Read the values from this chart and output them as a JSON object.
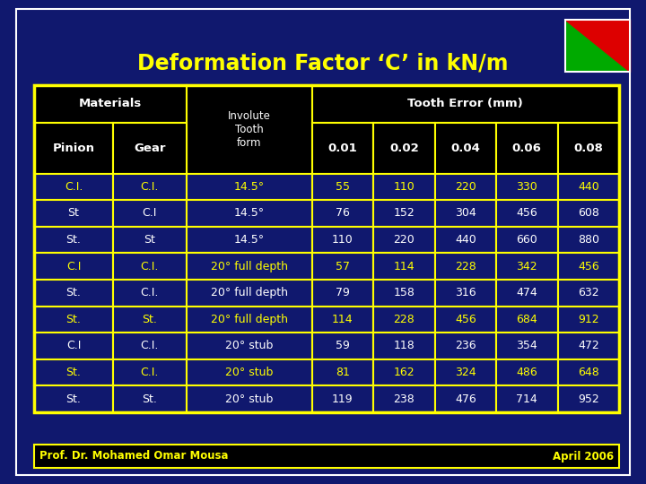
{
  "title": "Deformation Factor ‘C’ in kN/m",
  "background_color": "#10186e",
  "title_color": "#ffff00",
  "table_border_color": "#ffff00",
  "header_bg": "#000000",
  "header_text_color": "#ffffff",
  "data_bg": "#10186e",
  "highlight_color": "#ffff00",
  "normal_color": "#ffffff",
  "footer_left": "Prof. Dr. Mohamed Omar Mousa",
  "footer_right": "April 2006",
  "footer_color": "#ffff00",
  "footer_bg": "#000000",
  "rows": [
    {
      "pinion": "C.I.",
      "gear": "C.I.",
      "form": "14.5°",
      "v01": "55",
      "v02": "110",
      "v04": "220",
      "v06": "330",
      "v08": "440",
      "highlight": true
    },
    {
      "pinion": "St",
      "gear": "C.I",
      "form": "14.5°",
      "v01": "76",
      "v02": "152",
      "v04": "304",
      "v06": "456",
      "v08": "608",
      "highlight": false
    },
    {
      "pinion": "St.",
      "gear": "St",
      "form": "14.5°",
      "v01": "110",
      "v02": "220",
      "v04": "440",
      "v06": "660",
      "v08": "880",
      "highlight": false
    },
    {
      "pinion": "C.I",
      "gear": "C.I.",
      "form": "20° full depth",
      "v01": "57",
      "v02": "114",
      "v04": "228",
      "v06": "342",
      "v08": "456",
      "highlight": true
    },
    {
      "pinion": "St.",
      "gear": "C.I.",
      "form": "20° full depth",
      "v01": "79",
      "v02": "158",
      "v04": "316",
      "v06": "474",
      "v08": "632",
      "highlight": false
    },
    {
      "pinion": "St.",
      "gear": "St.",
      "form": "20° full depth",
      "v01": "114",
      "v02": "228",
      "v04": "456",
      "v06": "684",
      "v08": "912",
      "highlight": true
    },
    {
      "pinion": "C.I",
      "gear": "C.I.",
      "form": "20° stub",
      "v01": "59",
      "v02": "118",
      "v04": "236",
      "v06": "354",
      "v08": "472",
      "highlight": false
    },
    {
      "pinion": "St.",
      "gear": "C.I.",
      "form": "20° stub",
      "v01": "81",
      "v02": "162",
      "v04": "324",
      "v06": "486",
      "v08": "648",
      "highlight": true
    },
    {
      "pinion": "St.",
      "gear": "St.",
      "form": "20° stub",
      "v01": "119",
      "v02": "238",
      "v04": "476",
      "v06": "714",
      "v08": "952",
      "highlight": false
    }
  ]
}
